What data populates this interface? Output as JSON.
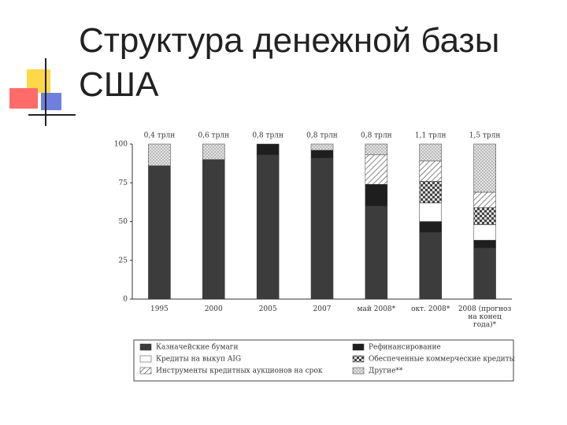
{
  "chart_data": {
    "type": "stacked-bar",
    "title": "Структура денежной базы США",
    "categories": [
      "1995",
      "2000",
      "2005",
      "2007",
      "май 2008*",
      "окт. 2008*",
      "2008 (прогноз на конец года)*"
    ],
    "top_labels": [
      "0,4 трлн",
      "0,6 трлн",
      "0,8 трлн",
      "0,8 трлн",
      "0,8 трлн",
      "1,1 трлн",
      "1,5 трлн"
    ],
    "series": [
      {
        "name": "Казначейские бумаги",
        "color": "#3c3c3c",
        "pattern": "none",
        "values": [
          86,
          90,
          93,
          91,
          60,
          43,
          33
        ]
      },
      {
        "name": "Рефинансирование",
        "color": "#1e1e1e",
        "pattern": "none",
        "values": [
          0,
          0,
          7,
          5,
          14,
          7,
          5
        ]
      },
      {
        "name": "Кредиты на выкуп AIG",
        "color": "#ffffff",
        "pattern": "none",
        "values": [
          0,
          0,
          0,
          0,
          0,
          12,
          10
        ]
      },
      {
        "name": "Обеспеченные коммерческие кредиты",
        "color": "#555555",
        "pattern": "checker",
        "values": [
          0,
          0,
          0,
          0,
          0,
          14,
          11
        ]
      },
      {
        "name": "Инструменты кредитных аукционов на срок",
        "color": "#666666",
        "pattern": "hatch",
        "values": [
          0,
          0,
          0,
          0,
          19,
          13,
          10
        ]
      },
      {
        "name": "Другие**",
        "color": "#999999",
        "pattern": "dots",
        "values": [
          14,
          10,
          0,
          4,
          7,
          11,
          31
        ]
      }
    ],
    "ylim": [
      0,
      100
    ],
    "yticks": [
      0,
      25,
      50,
      75,
      100
    ],
    "legend_columns": 2
  }
}
